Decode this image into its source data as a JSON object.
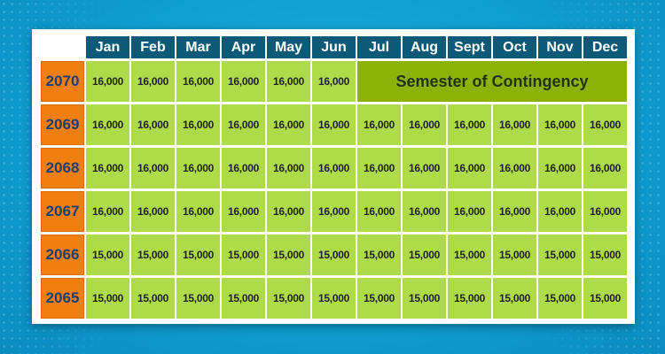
{
  "colors": {
    "background": "#12a6d6",
    "header": "#0d5a78",
    "year": "#f07f10",
    "value": "#aedb4a",
    "banner": "#8cb20a"
  },
  "months": [
    "Jan",
    "Feb",
    "Mar",
    "Apr",
    "May",
    "Jun",
    "Jul",
    "Aug",
    "Sept",
    "Oct",
    "Nov",
    "Dec"
  ],
  "rows": [
    {
      "year": "2070",
      "values": [
        "16,000",
        "16,000",
        "16,000",
        "16,000",
        "16,000",
        "16,000"
      ],
      "banner": "Semester of Contingency"
    },
    {
      "year": "2069",
      "values": [
        "16,000",
        "16,000",
        "16,000",
        "16,000",
        "16,000",
        "16,000",
        "16,000",
        "16,000",
        "16,000",
        "16,000",
        "16,000",
        "16,000"
      ]
    },
    {
      "year": "2068",
      "values": [
        "16,000",
        "16,000",
        "16,000",
        "16,000",
        "16,000",
        "16,000",
        "16,000",
        "16,000",
        "16,000",
        "16,000",
        "16,000",
        "16,000"
      ]
    },
    {
      "year": "2067",
      "values": [
        "16,000",
        "16,000",
        "16,000",
        "16,000",
        "16,000",
        "16,000",
        "16,000",
        "16,000",
        "16,000",
        "16,000",
        "16,000",
        "16,000"
      ]
    },
    {
      "year": "2066",
      "values": [
        "15,000",
        "15,000",
        "15,000",
        "15,000",
        "15,000",
        "15,000",
        "15,000",
        "15,000",
        "15,000",
        "15,000",
        "15,000",
        "15,000"
      ]
    },
    {
      "year": "2065",
      "values": [
        "15,000",
        "15,000",
        "15,000",
        "15,000",
        "15,000",
        "15,000",
        "15,000",
        "15,000",
        "15,000",
        "15,000",
        "15,000",
        "15,000"
      ]
    }
  ]
}
